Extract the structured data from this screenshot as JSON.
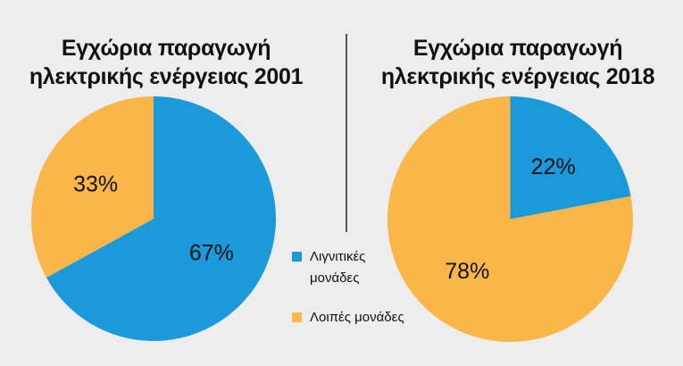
{
  "colors": {
    "lignite": "#1a9ad9",
    "other": "#fbb64a",
    "background": "#ededed"
  },
  "legend": [
    {
      "label": "Λιγνιτικές μονάδες",
      "color": "#1a9ad9"
    },
    {
      "label": "Λοιπές μονάδες",
      "color": "#fbb64a"
    }
  ],
  "chart_data": [
    {
      "type": "pie",
      "title_line1": "Εγχώρια παραγωγή",
      "title_line2": "ηλεκτρικής ενέργειας 2001",
      "categories": [
        "Λιγνιτικές μονάδες",
        "Λοιπές μονάδες"
      ],
      "values": [
        67,
        33
      ],
      "labels": [
        "67%",
        "33%"
      ]
    },
    {
      "type": "pie",
      "title_line1": "Εγχώρια παραγωγή",
      "title_line2": "ηλεκτρικής ενέργειας 2018",
      "categories": [
        "Λιγνιτικές μονάδες",
        "Λοιπές μονάδες"
      ],
      "values": [
        22,
        78
      ],
      "labels": [
        "22%",
        "78%"
      ]
    }
  ]
}
